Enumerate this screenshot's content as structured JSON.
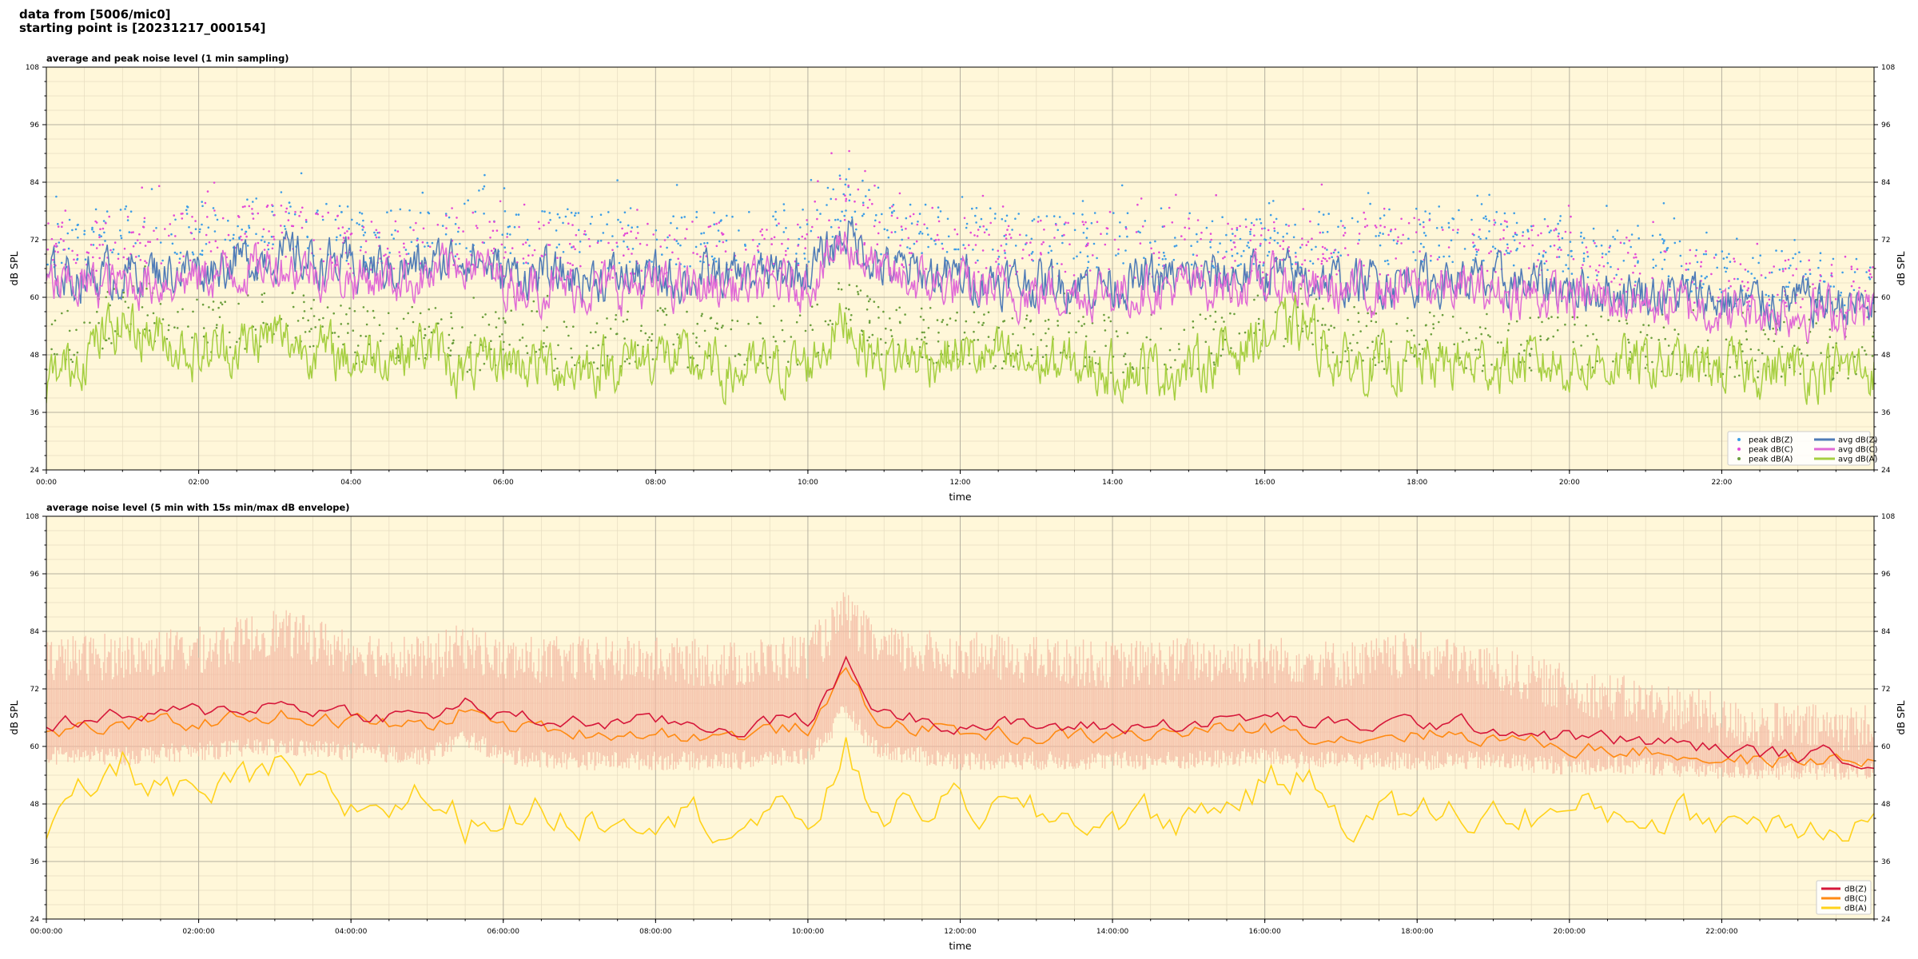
{
  "header": {
    "line1": "data from [5006/mic0]",
    "line2": "starting point is [20231217_000154]"
  },
  "colors": {
    "plot_bg": "#fff7d9",
    "avg_z": "#4f7bb7",
    "avg_c": "#e06ad6",
    "avg_a": "#a6cf41",
    "peak_z": "#3d9de6",
    "peak_c": "#e34ad6",
    "peak_a": "#6b9e3c",
    "dbz": "#d6173a",
    "dbc": "#ff8a12",
    "dba": "#ffd21a",
    "envelope": "#f4b8a2"
  },
  "chart_data": [
    {
      "type": "line",
      "title": "average and peak noise level (1 min sampling)",
      "xlabel": "time",
      "ylabel": "dB SPL",
      "xlim_hours": [
        0,
        24
      ],
      "ylim": [
        24,
        108
      ],
      "yticks": [
        24,
        36,
        48,
        60,
        72,
        84,
        96,
        108
      ],
      "xtick_labels": [
        "00:00",
        "02:00",
        "04:00",
        "06:00",
        "08:00",
        "10:00",
        "12:00",
        "14:00",
        "16:00",
        "18:00",
        "20:00",
        "22:00"
      ],
      "grid": true,
      "legend_position": "lower-right",
      "legend_columns": 2,
      "legend": [
        "peak dB(Z)",
        "peak dB(C)",
        "peak dB(A)",
        "avg dB(Z)",
        "avg dB(C)",
        "avg dB(A)"
      ],
      "x_hours": [
        0,
        1,
        2,
        3,
        4,
        5,
        5.5,
        6,
        7,
        8,
        9,
        10,
        10.3,
        10.5,
        10.8,
        11,
        12,
        13,
        14,
        15,
        16,
        16.5,
        17,
        18,
        19,
        20,
        21,
        21.8,
        22,
        23,
        24
      ],
      "series": [
        {
          "name": "avg dB(Z)",
          "style": "line",
          "values": [
            64,
            65,
            66,
            69,
            66,
            66,
            69,
            65,
            64,
            64,
            64,
            65,
            70,
            74,
            69,
            66,
            64,
            63,
            63,
            64,
            65,
            64,
            63,
            64,
            63,
            62,
            61,
            60,
            59,
            59,
            58
          ]
        },
        {
          "name": "avg dB(C)",
          "style": "line",
          "values": [
            62,
            63,
            64,
            67,
            64,
            64,
            68,
            63,
            62,
            62,
            62,
            63,
            68,
            72,
            67,
            64,
            62,
            61,
            61,
            62,
            63,
            62,
            61,
            62,
            61,
            60,
            59,
            58,
            57,
            57,
            57
          ]
        },
        {
          "name": "avg dB(A)",
          "style": "line",
          "values": [
            42,
            55,
            48,
            52,
            47,
            50,
            44,
            47,
            45,
            48,
            44,
            46,
            52,
            56,
            48,
            47,
            48,
            46,
            45,
            45,
            52,
            54,
            46,
            46,
            46,
            46,
            46,
            45,
            45,
            45,
            45
          ]
        },
        {
          "name": "peak dB(Z)",
          "style": "scatter",
          "values": [
            72,
            73,
            74,
            76,
            73,
            72,
            75,
            72,
            72,
            72,
            72,
            73,
            78,
            82,
            77,
            74,
            73,
            72,
            72,
            72,
            72,
            72,
            72,
            73,
            73,
            70,
            68,
            66,
            64,
            64,
            63
          ]
        },
        {
          "name": "peak dB(C)",
          "style": "scatter",
          "values": [
            70,
            71,
            72,
            74,
            71,
            70,
            73,
            70,
            70,
            70,
            70,
            71,
            76,
            80,
            75,
            72,
            71,
            70,
            70,
            70,
            70,
            70,
            70,
            71,
            71,
            68,
            66,
            64,
            62,
            62,
            61
          ]
        },
        {
          "name": "peak dB(A)",
          "style": "scatter",
          "values": [
            50,
            57,
            54,
            56,
            52,
            53,
            50,
            52,
            50,
            52,
            50,
            52,
            56,
            60,
            54,
            52,
            52,
            50,
            50,
            50,
            55,
            56,
            51,
            51,
            50,
            50,
            50,
            49,
            49,
            49,
            48
          ]
        }
      ]
    },
    {
      "type": "line",
      "title": "average noise level (5 min with 15s min/max dB envelope)",
      "xlabel": "time",
      "ylabel": "dB SPL",
      "xlim_hours": [
        0,
        24
      ],
      "ylim": [
        24,
        108
      ],
      "yticks": [
        24,
        36,
        48,
        60,
        72,
        84,
        96,
        108
      ],
      "xtick_labels": [
        "00:00:00",
        "02:00:00",
        "04:00:00",
        "06:00:00",
        "08:00:00",
        "10:00:00",
        "12:00:00",
        "14:00:00",
        "16:00:00",
        "18:00:00",
        "20:00:00",
        "22:00:00"
      ],
      "grid": true,
      "legend_position": "lower-right",
      "legend": [
        "dB(Z)",
        "dB(C)",
        "dB(A)"
      ],
      "x_hours": [
        0,
        1,
        2,
        3,
        4,
        5,
        5.5,
        6,
        7,
        8,
        9,
        10,
        10.3,
        10.5,
        10.8,
        11,
        12,
        13,
        14,
        15,
        16,
        16.5,
        17,
        18,
        19,
        20,
        21,
        21.8,
        22,
        23,
        24
      ],
      "series": [
        {
          "name": "dB(Z)",
          "values": [
            65,
            66,
            67,
            69,
            67,
            66,
            69,
            66,
            65,
            65,
            64,
            66,
            71,
            78,
            70,
            67,
            65,
            64,
            64,
            65,
            66,
            65,
            64,
            65,
            64,
            62,
            61,
            60,
            59,
            58,
            58
          ]
        },
        {
          "name": "dB(C)",
          "values": [
            63,
            64,
            65,
            67,
            65,
            64,
            68,
            64,
            63,
            63,
            62,
            64,
            69,
            76,
            68,
            65,
            63,
            62,
            62,
            63,
            64,
            63,
            62,
            63,
            62,
            60,
            59,
            58,
            57,
            57,
            57
          ]
        },
        {
          "name": "dB(A)",
          "values": [
            42,
            56,
            48,
            54,
            47,
            50,
            44,
            47,
            45,
            48,
            44,
            45,
            52,
            59,
            48,
            47,
            48,
            45,
            45,
            45,
            52,
            54,
            46,
            46,
            46,
            46,
            46,
            45,
            45,
            45,
            45
          ]
        },
        {
          "name": "envelope max",
          "values": [
            76,
            77,
            78,
            82,
            78,
            76,
            79,
            76,
            76,
            76,
            75,
            77,
            82,
            86,
            80,
            78,
            77,
            76,
            75,
            76,
            76,
            76,
            75,
            77,
            74,
            70,
            67,
            65,
            63,
            62,
            62
          ]
        },
        {
          "name": "envelope min",
          "values": [
            58,
            58,
            59,
            60,
            59,
            58,
            62,
            58,
            57,
            57,
            57,
            58,
            63,
            68,
            61,
            59,
            57,
            57,
            57,
            57,
            58,
            57,
            57,
            57,
            57,
            56,
            56,
            55,
            55,
            55,
            55
          ]
        }
      ]
    }
  ]
}
